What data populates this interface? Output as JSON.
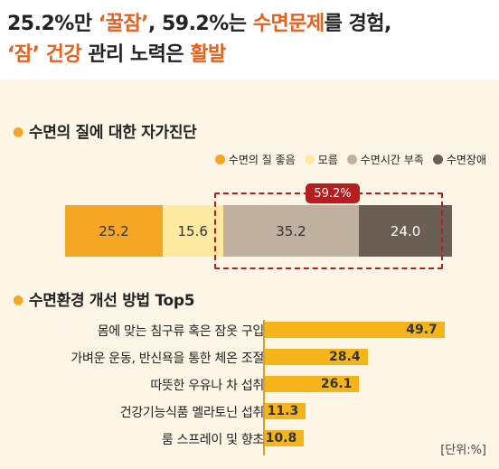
{
  "headline": {
    "line1": [
      {
        "text": "25.2%만 ",
        "highlight": false
      },
      {
        "text": "‘꿀잠’",
        "highlight": true
      },
      {
        "text": ", 59.2%는 ",
        "highlight": false
      },
      {
        "text": "수면문제",
        "highlight": true
      },
      {
        "text": "를 경험,",
        "highlight": false
      }
    ],
    "line2": [
      {
        "text": "‘잠’ 건강",
        "highlight": true
      },
      {
        "text": " 관리 노력은 ",
        "highlight": false
      },
      {
        "text": "활발",
        "highlight": true
      }
    ]
  },
  "unit_label": "[단위:%]",
  "chart_data": [
    {
      "type": "bar",
      "stacked": true,
      "orientation": "horizontal",
      "title": "수면의 질에 대한 자가진단",
      "legend_placement": "top-right",
      "series": [
        {
          "name": "수면의 질 좋음",
          "values": [
            25.2
          ],
          "color": "#f5a623"
        },
        {
          "name": "모름",
          "values": [
            15.6
          ],
          "color": "#fde9a0"
        },
        {
          "name": "수면시간 부족",
          "values": [
            35.2
          ],
          "color": "#bfb0a0"
        },
        {
          "name": "수면장애",
          "values": [
            24.0
          ],
          "color": "#6b5f55"
        }
      ],
      "annotation": "59.2%",
      "xlim": [
        0,
        100
      ]
    },
    {
      "type": "bar",
      "orientation": "horizontal",
      "title": "수면환경 개선 방법 Top5",
      "categories": [
        "몸에 맞는 침구류 혹은 잠옷 구입",
        "가벼운 운동, 반신욕을 통한 체온 조절",
        "따뜻한 우유나 차 섭취",
        "건강기능식품 멜라토닌 섭취",
        "룸 스프레이 및 향초"
      ],
      "values": [
        49.7,
        28.4,
        26.1,
        11.3,
        10.8
      ],
      "color": "#f5b51a",
      "xlim": [
        0,
        60
      ]
    }
  ]
}
